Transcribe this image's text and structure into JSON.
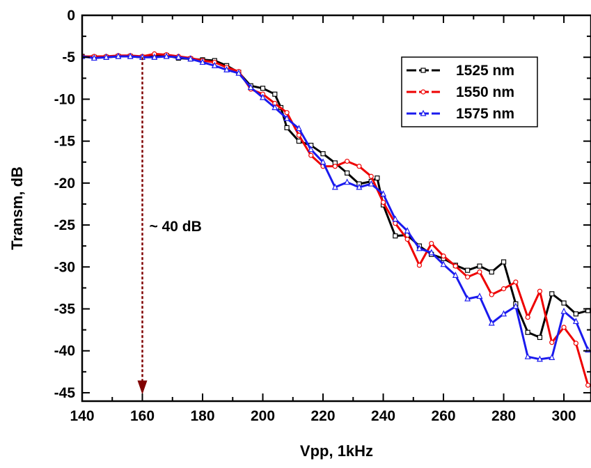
{
  "chart_data": {
    "type": "line",
    "xlabel": "Vpp, 1kHz",
    "ylabel": "Transm, dB",
    "xlim": [
      140,
      309
    ],
    "ylim": [
      -46,
      0
    ],
    "xticks": [
      "140",
      "160",
      "180",
      "200",
      "220",
      "240",
      "260",
      "280",
      "300"
    ],
    "xtick_values": [
      140,
      160,
      180,
      200,
      220,
      240,
      260,
      280,
      300
    ],
    "yticks": [
      "0",
      "-5",
      "-10",
      "-15",
      "-20",
      "-25",
      "-30",
      "-35",
      "-40",
      "-45"
    ],
    "ytick_values": [
      0,
      -5,
      -10,
      -15,
      -20,
      -25,
      -30,
      -35,
      -40,
      -45
    ],
    "grid": false,
    "legend_position": "top-right",
    "series": [
      {
        "name": "1525 nm",
        "color": "#000000",
        "marker": "square",
        "x": [
          140,
          144,
          148,
          152,
          156,
          160,
          164,
          168,
          172,
          176,
          180,
          184,
          188,
          192,
          196,
          200,
          204,
          206,
          208,
          212,
          216,
          220,
          224,
          228,
          232,
          236,
          238,
          240,
          244,
          248,
          252,
          256,
          260,
          264,
          268,
          272,
          276,
          280,
          284,
          288,
          292,
          296,
          300,
          304,
          308
        ],
        "y": [
          -4.9,
          -5.0,
          -5.0,
          -4.9,
          -4.9,
          -5.0,
          -4.9,
          -4.8,
          -5.1,
          -5.2,
          -5.3,
          -5.4,
          -6.0,
          -6.8,
          -8.4,
          -8.7,
          -9.4,
          -11.0,
          -13.4,
          -15.0,
          -15.5,
          -16.5,
          -17.6,
          -18.8,
          -20.1,
          -19.8,
          -19.4,
          -22.6,
          -26.3,
          -26.2,
          -27.5,
          -28.5,
          -29.0,
          -29.8,
          -30.4,
          -29.9,
          -30.6,
          -29.4,
          -34.4,
          -37.8,
          -38.4,
          -33.2,
          -34.3,
          -35.6,
          -35.2
        ]
      },
      {
        "name": "1550 nm",
        "color": "#ee0000",
        "marker": "circle",
        "x": [
          140,
          144,
          148,
          152,
          156,
          160,
          164,
          168,
          172,
          176,
          180,
          184,
          188,
          192,
          196,
          200,
          204,
          208,
          212,
          216,
          220,
          224,
          228,
          232,
          236,
          240,
          244,
          248,
          252,
          256,
          260,
          264,
          268,
          272,
          276,
          280,
          284,
          288,
          292,
          296,
          300,
          304,
          308
        ],
        "y": [
          -4.9,
          -4.9,
          -4.9,
          -4.8,
          -4.8,
          -4.9,
          -4.6,
          -4.7,
          -4.9,
          -5.1,
          -5.4,
          -5.6,
          -6.2,
          -6.7,
          -8.8,
          -9.4,
          -10.5,
          -11.6,
          -14.3,
          -16.7,
          -18.0,
          -18.0,
          -17.4,
          -18.0,
          -19.2,
          -22.3,
          -24.8,
          -26.7,
          -29.8,
          -27.2,
          -28.7,
          -29.9,
          -31.2,
          -30.6,
          -33.3,
          -32.6,
          -31.8,
          -36.0,
          -32.9,
          -39.0,
          -37.2,
          -39.1,
          -44.1
        ]
      },
      {
        "name": "1575 nm",
        "color": "#1a1aee",
        "marker": "triangle",
        "x": [
          140,
          144,
          148,
          152,
          156,
          160,
          164,
          168,
          172,
          176,
          180,
          184,
          188,
          192,
          196,
          200,
          204,
          208,
          212,
          216,
          220,
          224,
          228,
          232,
          236,
          240,
          244,
          248,
          252,
          256,
          260,
          264,
          268,
          272,
          276,
          280,
          284,
          288,
          292,
          296,
          300,
          304,
          308
        ],
        "y": [
          -4.9,
          -5.1,
          -5.0,
          -4.9,
          -4.9,
          -5.0,
          -5.0,
          -4.9,
          -5.0,
          -5.2,
          -5.6,
          -6.0,
          -6.5,
          -6.9,
          -8.6,
          -9.8,
          -11.0,
          -12.3,
          -13.5,
          -16.0,
          -17.5,
          -20.5,
          -19.9,
          -20.5,
          -20.1,
          -21.3,
          -24.3,
          -25.7,
          -27.8,
          -28.3,
          -29.7,
          -31.0,
          -33.8,
          -33.5,
          -36.7,
          -35.6,
          -34.7,
          -40.7,
          -41.0,
          -40.8,
          -35.3,
          -36.5,
          -39.9
        ]
      }
    ],
    "annotations": [
      {
        "text": "~ 40 dB",
        "type": "arrow",
        "x": 160,
        "y_from": -5.0,
        "y_to": -45.2,
        "color": "#800000"
      }
    ]
  }
}
